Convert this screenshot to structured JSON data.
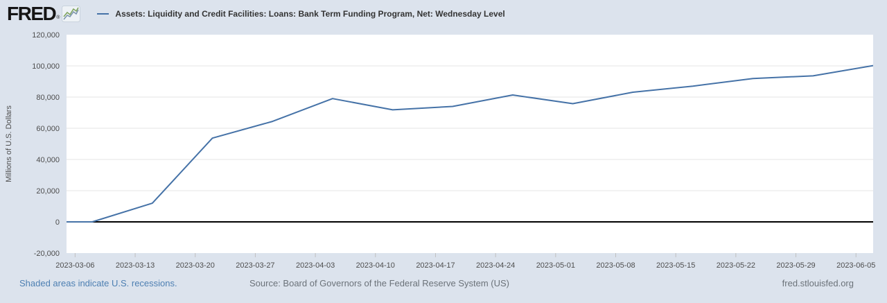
{
  "header": {
    "logo_text": "FRED",
    "registered_mark": "®",
    "legend": {
      "series_label": "Assets: Liquidity and Credit Facilities: Loans: Bank Term Funding Program, Net: Wednesday Level"
    }
  },
  "chart_data": {
    "type": "line",
    "title": "Assets: Liquidity and Credit Facilities: Loans: Bank Term Funding Program, Net: Wednesday Level",
    "ylabel": "Millions of U.S. Dollars",
    "xlabel": "",
    "x": [
      "2023-03-01",
      "2023-03-08",
      "2023-03-15",
      "2023-03-22",
      "2023-03-29",
      "2023-04-05",
      "2023-04-12",
      "2023-04-19",
      "2023-04-26",
      "2023-05-03",
      "2023-05-10",
      "2023-05-17",
      "2023-05-24",
      "2023-05-31",
      "2023-06-07"
    ],
    "values": [
      0,
      0,
      11943,
      53669,
      64403,
      79021,
      71837,
      73982,
      81327,
      75778,
      83101,
      87006,
      91907,
      93615,
      100161
    ],
    "x_domain": [
      "2023-03-05",
      "2023-06-07"
    ],
    "ylim": [
      -20000,
      120000
    ],
    "y_ticks": [
      120000,
      100000,
      80000,
      60000,
      40000,
      20000,
      0,
      -20000
    ],
    "x_ticks": [
      "2023-03-06",
      "2023-03-13",
      "2023-03-20",
      "2023-03-27",
      "2023-04-03",
      "2023-04-10",
      "2023-04-17",
      "2023-04-24",
      "2023-05-01",
      "2023-05-08",
      "2023-05-15",
      "2023-05-22",
      "2023-05-29",
      "2023-06-05"
    ],
    "grid": "horizontal",
    "legend_position": "top"
  },
  "footer": {
    "recession_note": "Shaded areas indicate U.S. recessions.",
    "source": "Source: Board of Governors of the Federal Reserve System (US)",
    "site": "fred.stlouisfed.org"
  },
  "colors": {
    "page_background": "#dce3ed",
    "plot_background": "#ffffff",
    "gridline": "#e6e6e6",
    "zero_line": "#000000",
    "series_line": "#4572a7",
    "tick_text": "#4d4d4d",
    "legend_text": "#333333",
    "recession_note_text": "#4d7fb2",
    "footer_text": "#6b7279",
    "tick_mark": "#c0c0c0"
  }
}
